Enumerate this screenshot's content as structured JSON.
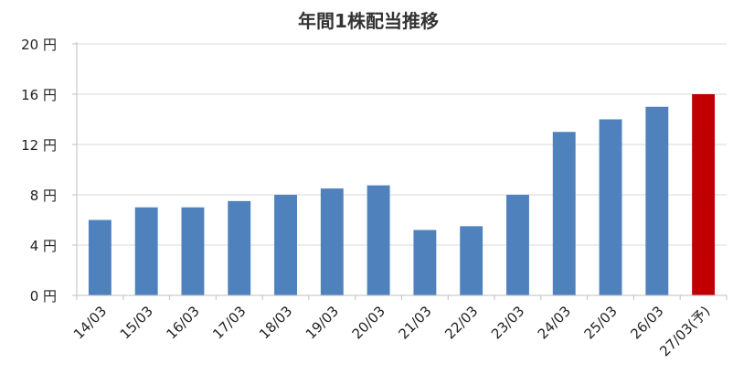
{
  "chart_data": {
    "type": "bar",
    "title": "年間1株配当推移",
    "categories": [
      "14/03",
      "15/03",
      "16/03",
      "17/03",
      "18/03",
      "19/03",
      "20/03",
      "21/03",
      "22/03",
      "23/03",
      "24/03",
      "25/03",
      "26/03",
      "27/03(予)"
    ],
    "values": [
      6,
      7,
      7,
      7.5,
      8,
      8.5,
      8.75,
      5.2,
      5.5,
      8,
      13,
      14,
      15,
      16
    ],
    "ylim": [
      0,
      20
    ],
    "yticks": [
      0,
      4,
      8,
      12,
      16,
      20
    ],
    "ytick_labels": [
      "0 円",
      "4 円",
      "8 円",
      "12 円",
      "16 円",
      "20 円"
    ],
    "xlabel": "",
    "ylabel": "",
    "grid": true,
    "legend": "none",
    "colors": {
      "actual": "#4f81bd",
      "forecast": "#c00000"
    },
    "highlight_index": 13
  }
}
